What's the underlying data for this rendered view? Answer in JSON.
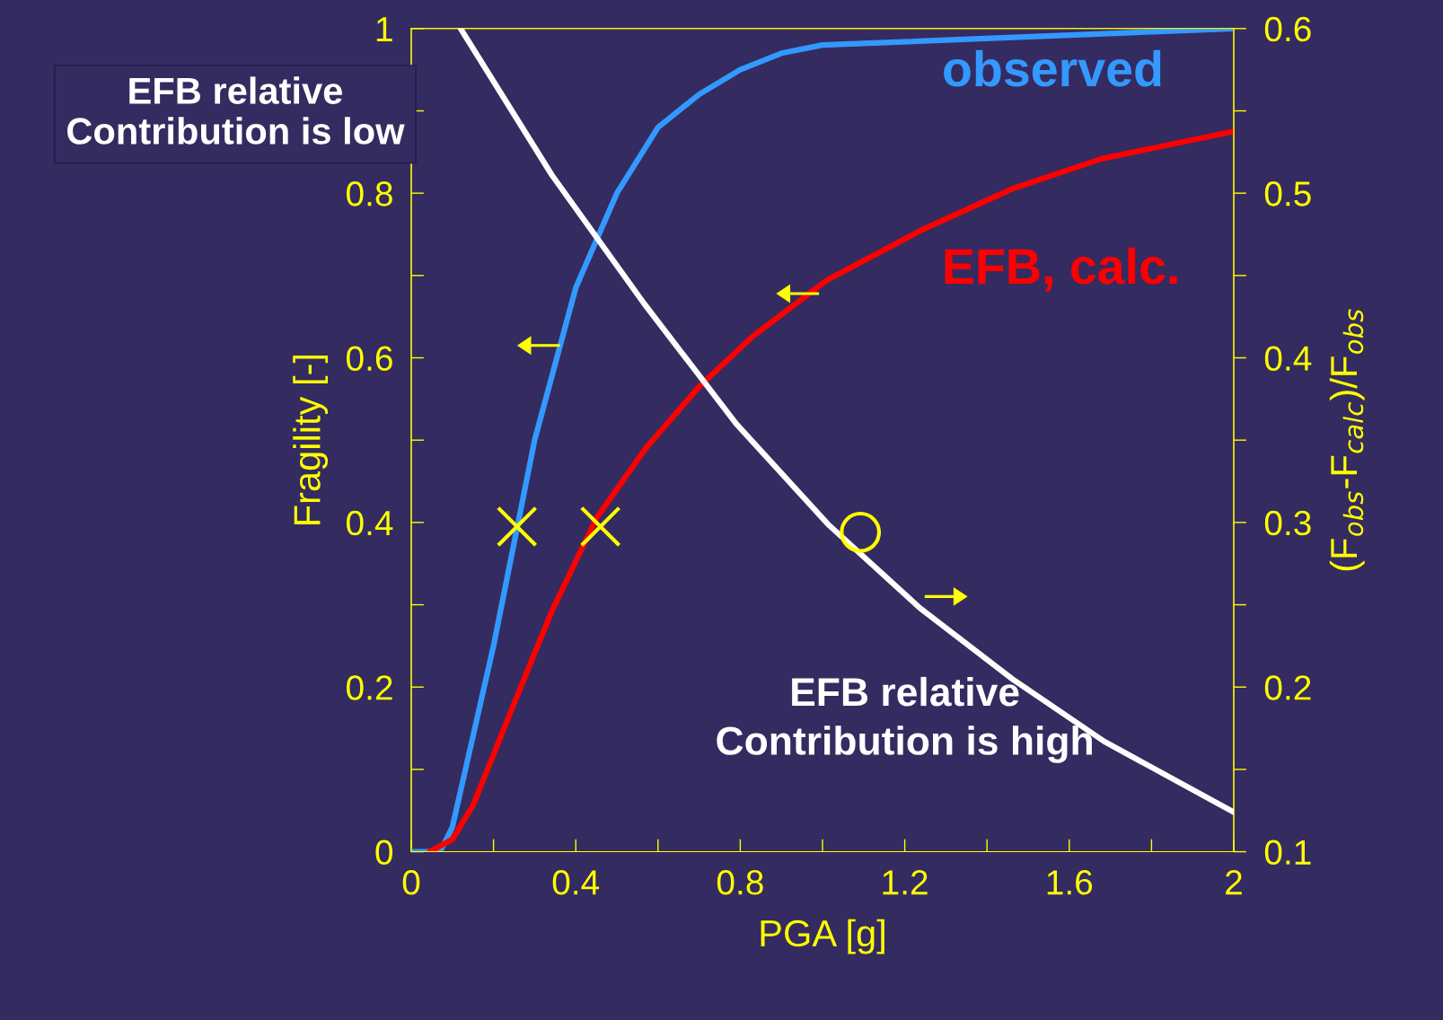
{
  "chart_data": {
    "type": "line",
    "xlabel": "PGA [g]",
    "ylabel": "Fragility [-]",
    "y2label": "(F$_{obs}$-F$_{calc}$)/F$_{obs}$",
    "xlim": [
      0,
      2
    ],
    "xticks": [
      0,
      {
        "value": 0.2,
        "label": null
      },
      0.4,
      {
        "value": 0.6,
        "label": null
      },
      0.8,
      {
        "value": 1.0,
        "label": null
      },
      1.2,
      {
        "value": 1.4,
        "label": null
      },
      1.6,
      {
        "value": 1.8,
        "label": null
      },
      2
    ],
    "ylim": [
      0,
      1
    ],
    "yticks": [
      0,
      {
        "value": 0.1,
        "label": null
      },
      0.2,
      {
        "value": 0.3,
        "label": null
      },
      0.4,
      {
        "value": 0.5,
        "label": null
      },
      0.6,
      {
        "value": 0.7,
        "label": null
      },
      0.8,
      {
        "value": 0.9,
        "label": null
      },
      1
    ],
    "y2lim": [
      0.1,
      0.6
    ],
    "y2ticks": [
      0.1,
      {
        "value": 0.15,
        "label": null
      },
      0.2,
      {
        "value": 0.25,
        "label": null
      },
      0.3,
      {
        "value": 0.35,
        "label": null
      },
      0.4,
      {
        "value": 0.45,
        "label": null
      },
      0.5,
      {
        "value": 0.55,
        "label": null
      },
      0.6
    ],
    "grid": false,
    "line_style": "solid",
    "marker": "none",
    "series": [
      {
        "name": "observed",
        "color": "#3399ff",
        "x": [
          0,
          0.07,
          0.1,
          0.2,
          0.3,
          0.4,
          0.5,
          0.6,
          0.7,
          0.8,
          0.9,
          1.0,
          2.0
        ],
        "values": [
          0,
          0,
          0.03,
          0.25,
          0.5,
          0.685,
          0.8,
          0.88,
          0.92,
          0.95,
          0.97,
          0.98,
          1.0
        ]
      },
      {
        "name": "EFB, calc.",
        "color": "#ff0000",
        "x": [
          0.045,
          0.1,
          0.15,
          0.25,
          0.34,
          0.45,
          0.57,
          0.7,
          0.83,
          1.01,
          1.24,
          1.46,
          1.68,
          2.0
        ],
        "values": [
          0,
          0.015,
          0.056,
          0.18,
          0.29,
          0.405,
          0.49,
          0.565,
          0.626,
          0.694,
          0.755,
          0.805,
          0.842,
          0.875
        ]
      },
      {
        "color": "#ffffff",
        "axis": "y2",
        "x": [
          0.12,
          0.342,
          0.566,
          0.79,
          1.013,
          1.237,
          1.461,
          1.685,
          2.0
        ],
        "values": [
          0.6,
          0.511,
          0.433,
          0.36,
          0.299,
          0.248,
          0.205,
          0.167,
          0.124
        ]
      },
      {
        "type": "scatter",
        "color": "#ffff00",
        "marker": "cross",
        "x": [
          0.257
        ],
        "values": [
          0.395
        ]
      },
      {
        "type": "scatter",
        "color": "#ffff00",
        "marker": "cross",
        "x": [
          0.46
        ],
        "values": [
          0.395
        ]
      },
      {
        "type": "scatter",
        "color": "#ffff00",
        "marker": "circle",
        "axis": "y2",
        "x": [
          1.092
        ],
        "values": [
          0.294
        ]
      }
    ],
    "annotations": [
      "EFB relative\nContribution is low",
      "EFB relative\nContribution is high"
    ]
  }
}
